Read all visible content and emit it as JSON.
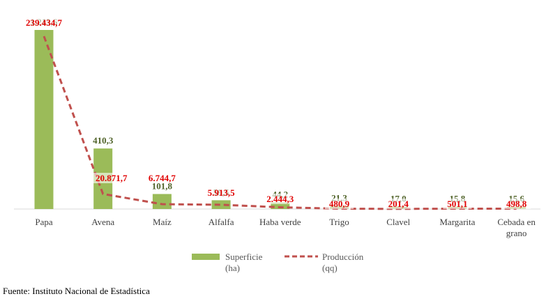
{
  "chart_data": {
    "type": "bar+line",
    "categories": [
      "Papa",
      "Avena",
      "Maíz",
      "Alfalfa",
      "Haba verde",
      "Trigo",
      "Clavel",
      "Margarita",
      "Cebada en grano"
    ],
    "category_lines": [
      [
        "Papa"
      ],
      [
        "Avena"
      ],
      [
        "Maíz"
      ],
      [
        "Alfalfa"
      ],
      [
        "Haba verde"
      ],
      [
        "Trigo"
      ],
      [
        "Clavel"
      ],
      [
        "Margarita"
      ],
      [
        "Cebada en",
        "grano"
      ]
    ],
    "series": [
      {
        "name": "Superficie (ha)",
        "type": "bar",
        "color": "#9bbb59",
        "values": [
          1213.6,
          410.3,
          101.8,
          59.5,
          44.2,
          21.3,
          17.0,
          15.8,
          15.6
        ],
        "labels": [
          "1.213,6",
          "410,3",
          "101,8",
          "59,5",
          "44,2",
          "21,3",
          "17,0",
          "15,8",
          "15,6"
        ]
      },
      {
        "name": "Producción (qq)",
        "type": "line",
        "color": "#c0504d",
        "values": [
          239434.7,
          20871.7,
          6744.7,
          5913.5,
          2444.3,
          480.9,
          201.4,
          501.1,
          498.8
        ],
        "labels": [
          "239.434,7",
          "20.871,7",
          "6.744,7",
          "5.913,5",
          "2.444,3",
          "480,9",
          "201,4",
          "501,1",
          "498,8"
        ]
      }
    ],
    "legend": {
      "position": "bottom",
      "items": [
        {
          "lines": [
            "Superficie",
            "(ha)"
          ],
          "style": "bar",
          "color": "#9bbb59"
        },
        {
          "lines": [
            "Producción",
            "(qq)"
          ],
          "style": "dashed-line",
          "color": "#c0504d"
        }
      ]
    },
    "grid": false
  },
  "source": "Fuente: Instituto Nacional de Estadística"
}
